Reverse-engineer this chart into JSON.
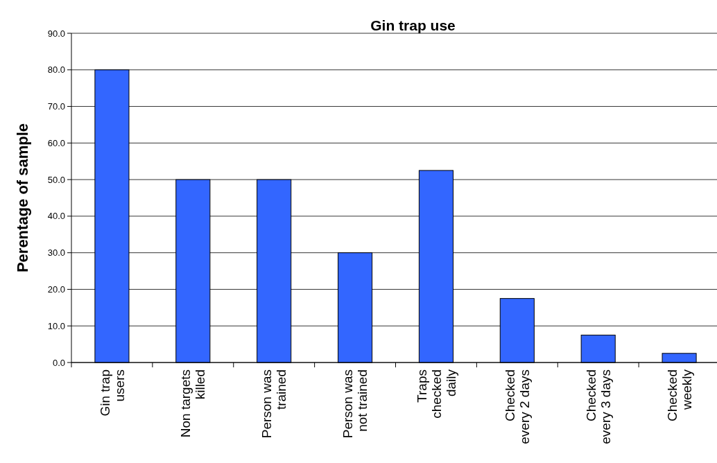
{
  "chart_data": {
    "type": "bar",
    "title": "Gin trap use",
    "ylabel": "Perentage of sample",
    "categories": [
      "Gin trap users",
      "Non targets killed",
      "Person was trained",
      "Person was not trained",
      "Traps checked daily",
      "Checked every 2 days",
      "Checked every 3 days",
      "Checked weekly"
    ],
    "values": [
      80,
      50,
      50,
      30,
      52.5,
      17.5,
      7.5,
      2.5
    ],
    "color": "#3366ff",
    "ylim": [
      0,
      90
    ],
    "yticks": [
      {
        "value": 0,
        "label": "0.0"
      },
      {
        "value": 10,
        "label": "10.0"
      },
      {
        "value": 20,
        "label": "20.0"
      },
      {
        "value": 30,
        "label": "30.0"
      },
      {
        "value": 40,
        "label": "40.0"
      },
      {
        "value": 50,
        "label": "50.0"
      },
      {
        "value": 60,
        "label": "60.0"
      },
      {
        "value": 70,
        "label": "70.0"
      },
      {
        "value": 80,
        "label": "80.0"
      },
      {
        "value": 90,
        "label": "90.0"
      }
    ],
    "grid": "y"
  }
}
